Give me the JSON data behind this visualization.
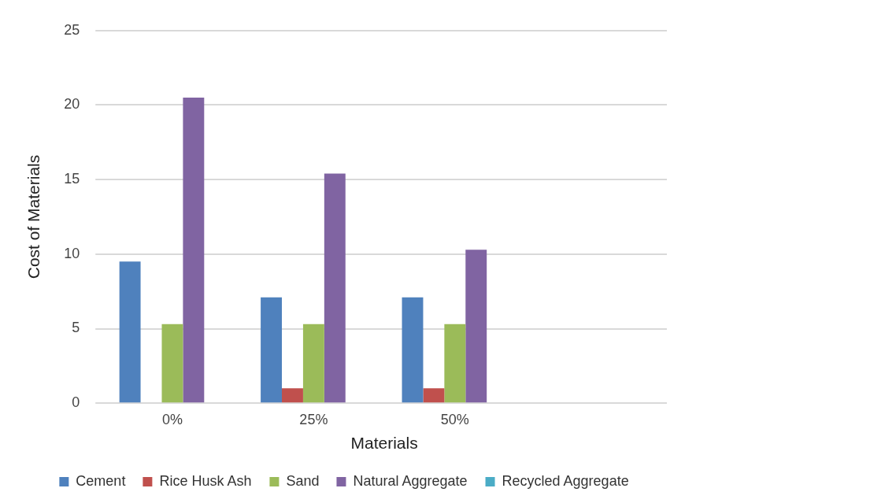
{
  "chart_data": {
    "type": "bar",
    "xlabel": "Materials",
    "ylabel": "Cost of Materials",
    "categories": [
      "0%",
      "25%",
      "50%",
      null
    ],
    "series": [
      {
        "name": "Cement",
        "color": "#4f81bd",
        "values": [
          9.5,
          7.1,
          7.1,
          null
        ]
      },
      {
        "name": "Rice Husk Ash",
        "color": "#c0504d",
        "values": [
          0,
          1,
          1,
          null
        ]
      },
      {
        "name": "Sand",
        "color": "#9bbb59",
        "values": [
          5.3,
          5.3,
          5.3,
          null
        ]
      },
      {
        "name": "Natural Aggregate",
        "color": "#8064a2",
        "values": [
          20.5,
          15.4,
          10.3,
          null
        ]
      },
      {
        "name": "Recycled Aggregate",
        "color": "#4bacc6",
        "values": [
          0,
          0,
          0,
          null
        ]
      }
    ],
    "ylim": [
      0,
      25
    ],
    "yticks": [
      0,
      5,
      10,
      15,
      20,
      25
    ],
    "grid": "y",
    "legend": "bottom"
  }
}
